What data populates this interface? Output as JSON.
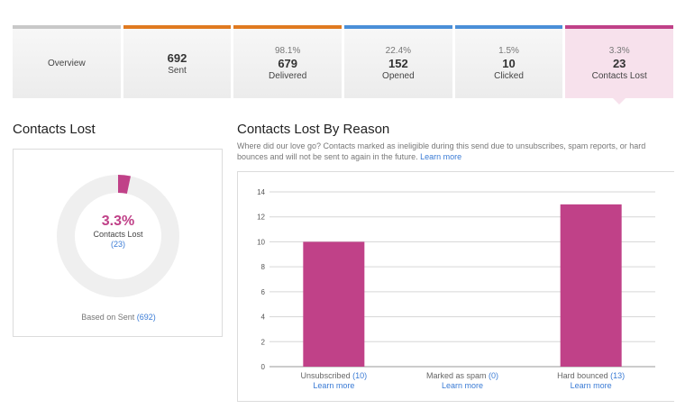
{
  "tabs": [
    {
      "key": "overview",
      "pct": "",
      "num": "",
      "label": "Overview"
    },
    {
      "key": "sent",
      "pct": "",
      "num": "692",
      "label": "Sent"
    },
    {
      "key": "delivered",
      "pct": "98.1%",
      "num": "679",
      "label": "Delivered"
    },
    {
      "key": "opened",
      "pct": "22.4%",
      "num": "152",
      "label": "Opened"
    },
    {
      "key": "clicked",
      "pct": "1.5%",
      "num": "10",
      "label": "Clicked"
    },
    {
      "key": "lost",
      "pct": "3.3%",
      "num": "23",
      "label": "Contacts Lost"
    }
  ],
  "left": {
    "title": "Contacts Lost",
    "donut": {
      "pct_label": "3.3%",
      "fraction": 0.033,
      "label": "Contacts Lost",
      "count": "(23)",
      "fill_color": "#c04188",
      "track_color": "#efefef"
    },
    "based_on_text": "Based on Sent",
    "based_on_count": "(692)"
  },
  "right": {
    "title": "Contacts Lost By Reason",
    "description": "Where did our love go? Contacts marked as ineligible during this send due to unsubscribes, spam reports, or hard bounces and will not be sent to again in the future.",
    "learn_more": "Learn more"
  },
  "chart_data": {
    "type": "bar",
    "categories": [
      "Unsubscribed",
      "Marked as spam",
      "Hard bounced"
    ],
    "category_counts": [
      "(10)",
      "(0)",
      "(13)"
    ],
    "category_links": [
      "Learn more",
      "Learn more",
      "Learn more"
    ],
    "values": [
      10,
      0,
      13
    ],
    "yticks": [
      0,
      2,
      4,
      6,
      8,
      10,
      12,
      14
    ],
    "ylim": [
      0,
      14
    ],
    "bar_color": "#c04188",
    "grid": true
  }
}
